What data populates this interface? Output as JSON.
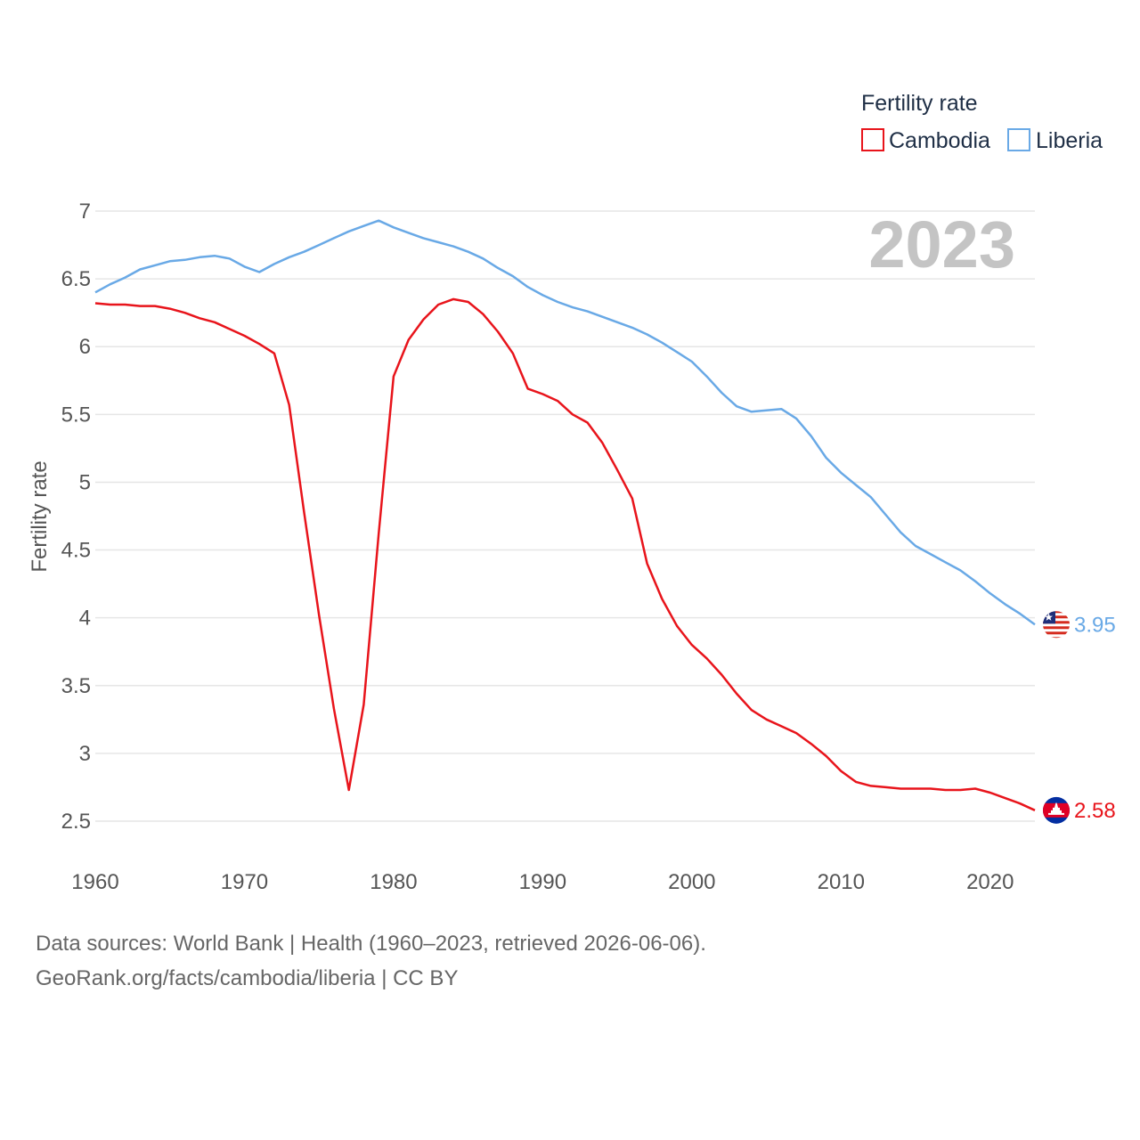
{
  "chart_data": {
    "type": "line",
    "title": "",
    "xlabel": "",
    "ylabel": "Fertility rate",
    "xlim": [
      1960,
      2023
    ],
    "ylim": [
      2.5,
      7
    ],
    "x_ticks": [
      1960,
      1970,
      1980,
      1990,
      2000,
      2010,
      2020
    ],
    "y_ticks": [
      2.5,
      3,
      3.5,
      4,
      4.5,
      5,
      5.5,
      6,
      6.5,
      7
    ],
    "y_tick_labels": [
      "2.5",
      "3",
      "3.5",
      "4",
      "4.5",
      "5",
      "5.5",
      "6",
      "6.5",
      "7"
    ],
    "year_label": "2023",
    "legend": {
      "title": "Fertility rate",
      "position": "top-right"
    },
    "x": [
      1960,
      1961,
      1962,
      1963,
      1964,
      1965,
      1966,
      1967,
      1968,
      1969,
      1970,
      1971,
      1972,
      1973,
      1974,
      1975,
      1976,
      1977,
      1978,
      1979,
      1980,
      1981,
      1982,
      1983,
      1984,
      1985,
      1986,
      1987,
      1988,
      1989,
      1990,
      1991,
      1992,
      1993,
      1994,
      1995,
      1996,
      1997,
      1998,
      1999,
      2000,
      2001,
      2002,
      2003,
      2004,
      2005,
      2006,
      2007,
      2008,
      2009,
      2010,
      2011,
      2012,
      2013,
      2014,
      2015,
      2016,
      2017,
      2018,
      2019,
      2020,
      2021,
      2022,
      2023
    ],
    "series": [
      {
        "name": "Cambodia",
        "color": "#e8141b",
        "end_label": "2.58",
        "flag": "cambodia-flag-icon",
        "values": [
          6.32,
          6.31,
          6.31,
          6.3,
          6.3,
          6.28,
          6.25,
          6.21,
          6.18,
          6.13,
          6.08,
          6.02,
          5.95,
          5.57,
          4.78,
          4.02,
          3.33,
          2.73,
          3.36,
          4.62,
          5.78,
          6.05,
          6.2,
          6.31,
          6.35,
          6.33,
          6.24,
          6.11,
          5.95,
          5.69,
          5.65,
          5.6,
          5.5,
          5.44,
          5.29,
          5.09,
          4.88,
          4.4,
          4.14,
          3.94,
          3.8,
          3.7,
          3.58,
          3.44,
          3.32,
          3.25,
          3.2,
          3.15,
          3.07,
          2.98,
          2.87,
          2.79,
          2.76,
          2.75,
          2.74,
          2.74,
          2.74,
          2.73,
          2.73,
          2.74,
          2.71,
          2.67,
          2.63,
          2.58
        ]
      },
      {
        "name": "Liberia",
        "color": "#69a9e6",
        "end_label": "3.95",
        "flag": "liberia-flag-icon",
        "values": [
          6.4,
          6.46,
          6.51,
          6.57,
          6.6,
          6.63,
          6.64,
          6.66,
          6.67,
          6.65,
          6.59,
          6.55,
          6.61,
          6.66,
          6.7,
          6.75,
          6.8,
          6.85,
          6.89,
          6.93,
          6.88,
          6.84,
          6.8,
          6.77,
          6.74,
          6.7,
          6.65,
          6.58,
          6.52,
          6.44,
          6.38,
          6.33,
          6.29,
          6.26,
          6.22,
          6.18,
          6.14,
          6.09,
          6.03,
          5.96,
          5.89,
          5.78,
          5.66,
          5.56,
          5.52,
          5.53,
          5.54,
          5.47,
          5.34,
          5.18,
          5.07,
          4.98,
          4.89,
          4.76,
          4.63,
          4.53,
          4.47,
          4.41,
          4.35,
          4.27,
          4.18,
          4.1,
          4.03,
          3.95
        ]
      }
    ]
  },
  "source": {
    "line1": "Data sources: World Bank | Health (1960–2023, retrieved 2026-06-06).",
    "line2": "GeoRank.org/facts/cambodia/liberia | CC BY"
  }
}
